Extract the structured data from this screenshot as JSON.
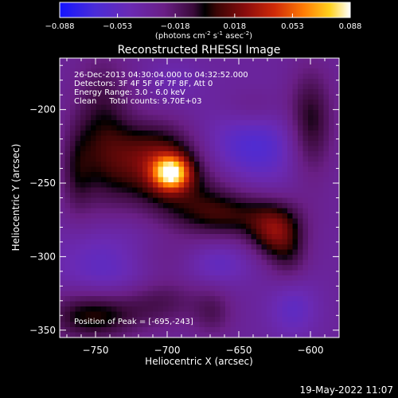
{
  "colorbar": {
    "ticks": [
      "-0.088",
      "-0.053",
      "-0.018",
      "0.018",
      "0.053",
      "0.088"
    ],
    "unit_label": "(photons cm",
    "unit_exp1": "-2",
    "unit_mid": " s",
    "unit_exp2": "-1",
    "unit_mid2": " asec",
    "unit_exp3": "-2",
    "unit_end": ")"
  },
  "chart_data": {
    "type": "heatmap",
    "title": "Reconstructed RHESSI Image",
    "xlabel": "Heliocentric X (arcsec)",
    "ylabel": "Heliocentric Y (arcsec)",
    "xlim": [
      -775,
      -580
    ],
    "ylim": [
      -355,
      -165
    ],
    "x_ticks": [
      -750,
      -700,
      -650,
      -600
    ],
    "y_ticks": [
      -200,
      -250,
      -300,
      -350
    ],
    "x_tick_labels": [
      "−750",
      "−700",
      "−650",
      "−600"
    ],
    "y_tick_labels": [
      "−200",
      "−250",
      "−300",
      "−350"
    ],
    "zlim": [
      -0.088,
      0.088
    ],
    "peak": [
      -695,
      -243
    ],
    "sources": [
      {
        "x": -697,
        "y": -243,
        "amp": 0.088,
        "sx": 9,
        "sy": 8
      },
      {
        "x": -710,
        "y": -232,
        "amp": 0.05,
        "sx": 22,
        "sy": 16
      },
      {
        "x": -690,
        "y": -255,
        "amp": 0.025,
        "sx": 30,
        "sy": 14
      },
      {
        "x": -745,
        "y": -215,
        "amp": 0.03,
        "sx": 14,
        "sy": 35
      },
      {
        "x": -763,
        "y": -242,
        "amp": 0.022,
        "sx": 8,
        "sy": 22
      },
      {
        "x": -658,
        "y": -272,
        "amp": 0.035,
        "sx": 28,
        "sy": 11
      },
      {
        "x": -625,
        "y": -283,
        "amp": 0.045,
        "sx": 12,
        "sy": 12
      },
      {
        "x": -615,
        "y": -300,
        "amp": 0.02,
        "sx": 10,
        "sy": 14
      },
      {
        "x": -752,
        "y": -340,
        "amp": 0.04,
        "sx": 22,
        "sy": 12
      },
      {
        "x": -705,
        "y": -330,
        "amp": 0.022,
        "sx": 20,
        "sy": 12
      },
      {
        "x": -668,
        "y": -338,
        "amp": 0.018,
        "sx": 10,
        "sy": 12
      },
      {
        "x": -600,
        "y": -210,
        "amp": 0.035,
        "sx": 11,
        "sy": 25
      },
      {
        "x": -640,
        "y": -200,
        "amp": 0.015,
        "sx": 16,
        "sy": 10
      },
      {
        "x": -710,
        "y": -300,
        "amp": 0.012,
        "sx": 25,
        "sy": 10
      },
      {
        "x": -640,
        "y": -225,
        "amp": -0.03,
        "sx": 24,
        "sy": 20
      },
      {
        "x": -740,
        "y": -305,
        "amp": -0.025,
        "sx": 24,
        "sy": 18
      },
      {
        "x": -665,
        "y": -305,
        "amp": -0.02,
        "sx": 16,
        "sy": 10
      },
      {
        "x": -612,
        "y": -335,
        "amp": -0.02,
        "sx": 12,
        "sy": 14
      },
      {
        "x": -695,
        "y": -180,
        "amp": -0.01,
        "sx": 14,
        "sy": 10
      }
    ],
    "info_lines": [
      "26-Dec-2013 04:30:04.000 to 04:32:52.000",
      "Detectors: 3F 4F 5F 6F 7F 8F, Att 0",
      "Energy Range: 3.0 - 6.0 keV",
      "Clean     Total counts: 9.70E+03"
    ],
    "peak_label": "Position of Peak = [-695,-243]"
  },
  "footer": {
    "date": "19-May-2022 11:07"
  }
}
